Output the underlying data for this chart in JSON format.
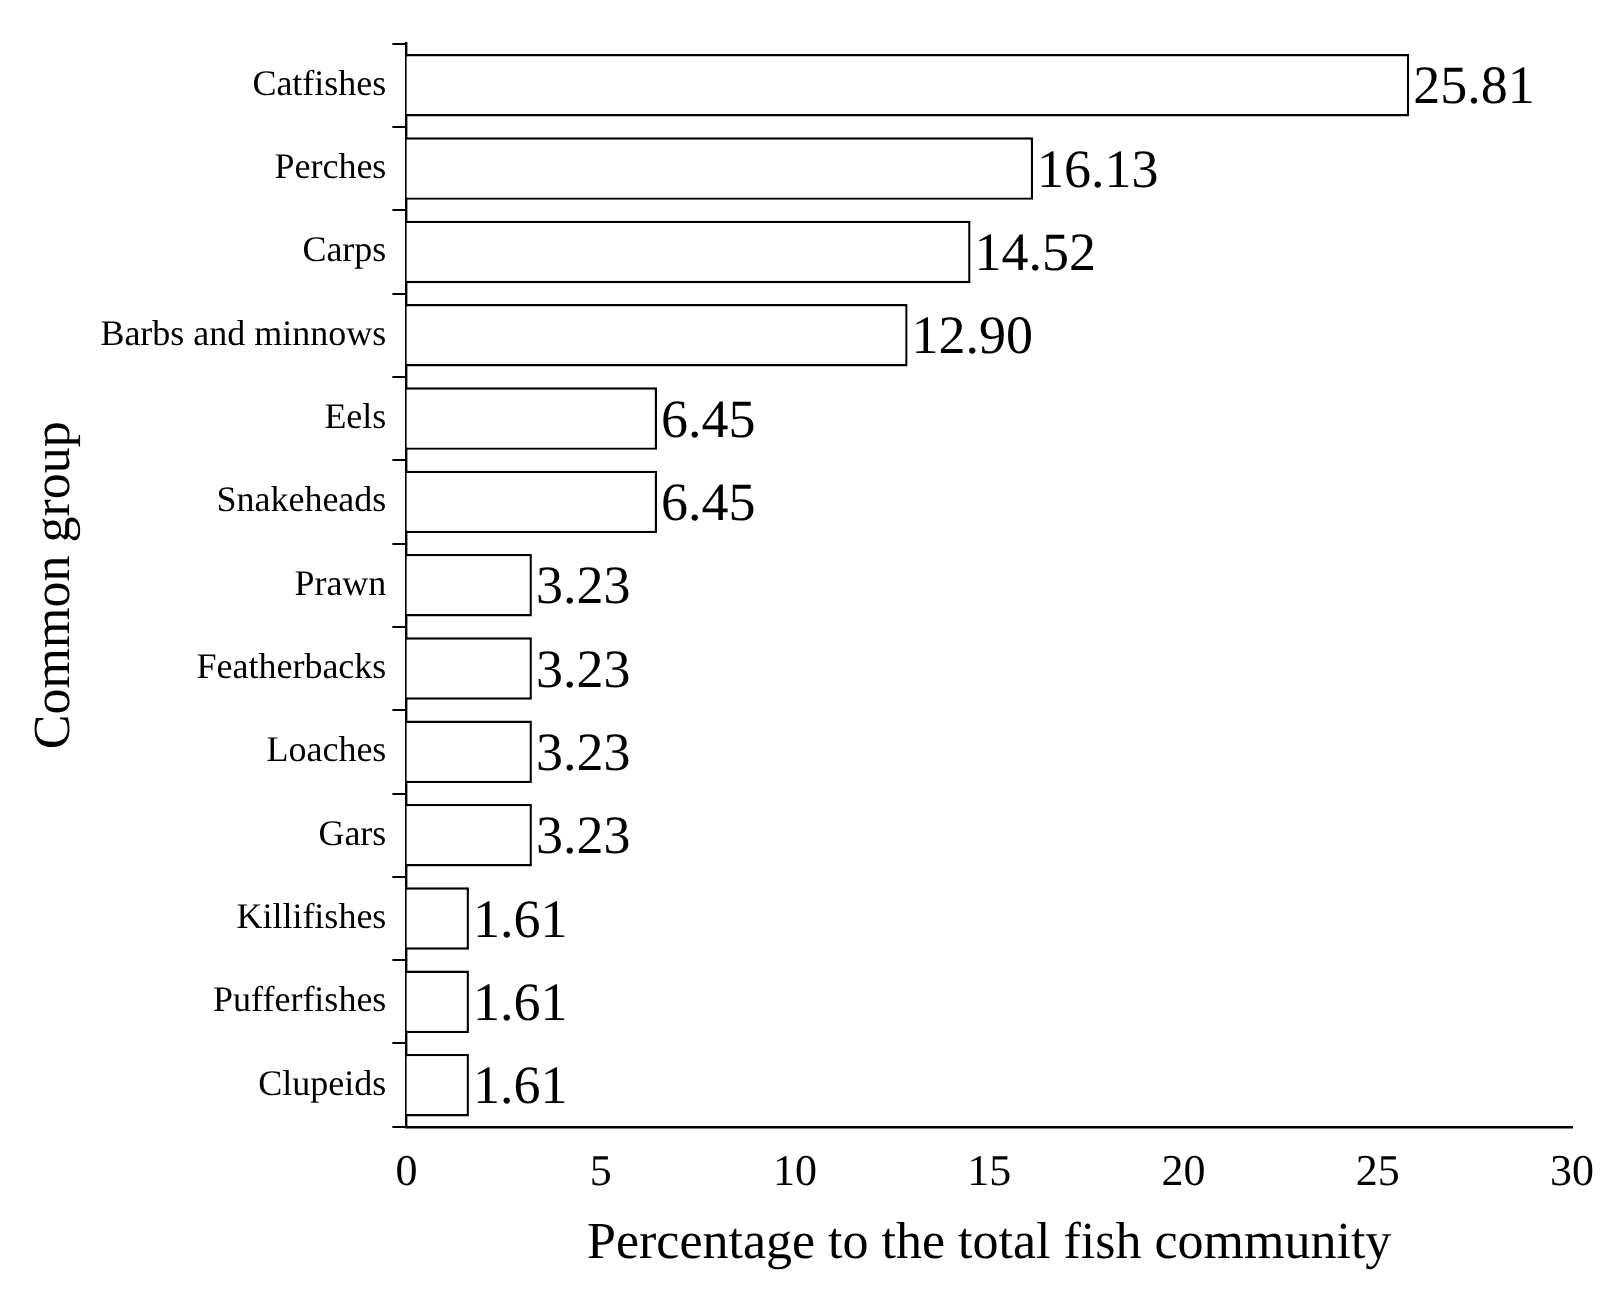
{
  "chart_data": {
    "type": "bar",
    "orientation": "horizontal",
    "xlabel": "Percentage to the total fish community",
    "ylabel": "Common group",
    "categories": [
      "Catfishes",
      "Perches",
      "Carps",
      "Barbs and minnows",
      "Eels",
      "Snakeheads",
      "Prawn",
      "Featherbacks",
      "Loaches",
      "Gars",
      "Killifishes",
      "Pufferfishes",
      "Clupeids"
    ],
    "values": [
      25.81,
      16.13,
      14.52,
      12.9,
      6.45,
      6.45,
      3.23,
      3.23,
      3.23,
      3.23,
      1.61,
      1.61,
      1.61
    ],
    "value_labels": [
      "25.81",
      "16.13",
      "14.52",
      "12.90",
      "6.45",
      "6.45",
      "3.23",
      "3.23",
      "3.23",
      "3.23",
      "1.61",
      "1.61",
      "1.61"
    ],
    "color": "#ffffff",
    "xlim": [
      0,
      30
    ],
    "xticks": [
      0,
      5,
      10,
      15,
      20,
      25,
      30
    ],
    "grid": false,
    "legend": false
  }
}
